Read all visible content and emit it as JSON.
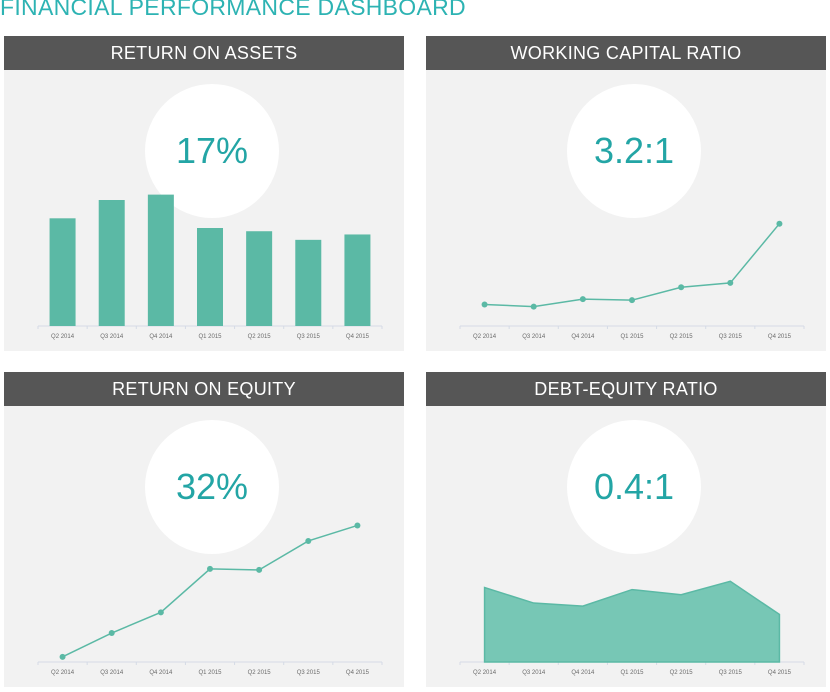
{
  "title": "FINANCIAL PERFORMANCE DASHBOARD",
  "colors": {
    "accent": "#2db3b3",
    "bar": "#5bb9a5",
    "line": "#5bb9a5",
    "area": "#77c7b5",
    "header": "#565656",
    "panel": "#f2f2f2"
  },
  "panels": [
    {
      "header": "RETURN ON ASSETS",
      "kpi": "17%"
    },
    {
      "header": "WORKING CAPITAL RATIO",
      "kpi": "3.2:1"
    },
    {
      "header": "RETURN ON EQUITY",
      "kpi": "32%"
    },
    {
      "header": "DEBT-EQUITY RATIO",
      "kpi": "0.4:1"
    }
  ],
  "chart_data": [
    {
      "type": "bar",
      "title": "RETURN ON ASSETS",
      "categories": [
        "Q2 2014",
        "Q3 2014",
        "Q4 2014",
        "Q1 2015",
        "Q2 2015",
        "Q3 2015",
        "Q4 2015"
      ],
      "values": [
        100,
        117,
        122,
        91,
        88,
        80,
        85
      ],
      "ylim": [
        0,
        130
      ],
      "grid": false
    },
    {
      "type": "line",
      "title": "WORKING CAPITAL RATIO",
      "categories": [
        "Q2 2014",
        "Q3 2014",
        "Q4 2014",
        "Q1 2015",
        "Q2 2015",
        "Q3 2015",
        "Q4 2015"
      ],
      "values": [
        20,
        18,
        25,
        24,
        36,
        40,
        95
      ],
      "ylim": [
        0,
        130
      ],
      "grid": false
    },
    {
      "type": "line",
      "title": "RETURN ON EQUITY",
      "categories": [
        "Q2 2014",
        "Q3 2014",
        "Q4 2014",
        "Q1 2015",
        "Q2 2015",
        "Q3 2015",
        "Q4 2015"
      ],
      "values": [
        5,
        28,
        48,
        90,
        89,
        117,
        132
      ],
      "ylim": [
        0,
        145
      ],
      "grid": false
    },
    {
      "type": "area",
      "title": "DEBT-EQUITY RATIO",
      "categories": [
        "Q2 2014",
        "Q3 2014",
        "Q4 2014",
        "Q1 2015",
        "Q2 2015",
        "Q3 2015",
        "Q4 2015"
      ],
      "values": [
        72,
        57,
        54,
        70,
        65,
        78,
        46
      ],
      "ylim": [
        0,
        145
      ],
      "grid": false
    }
  ]
}
